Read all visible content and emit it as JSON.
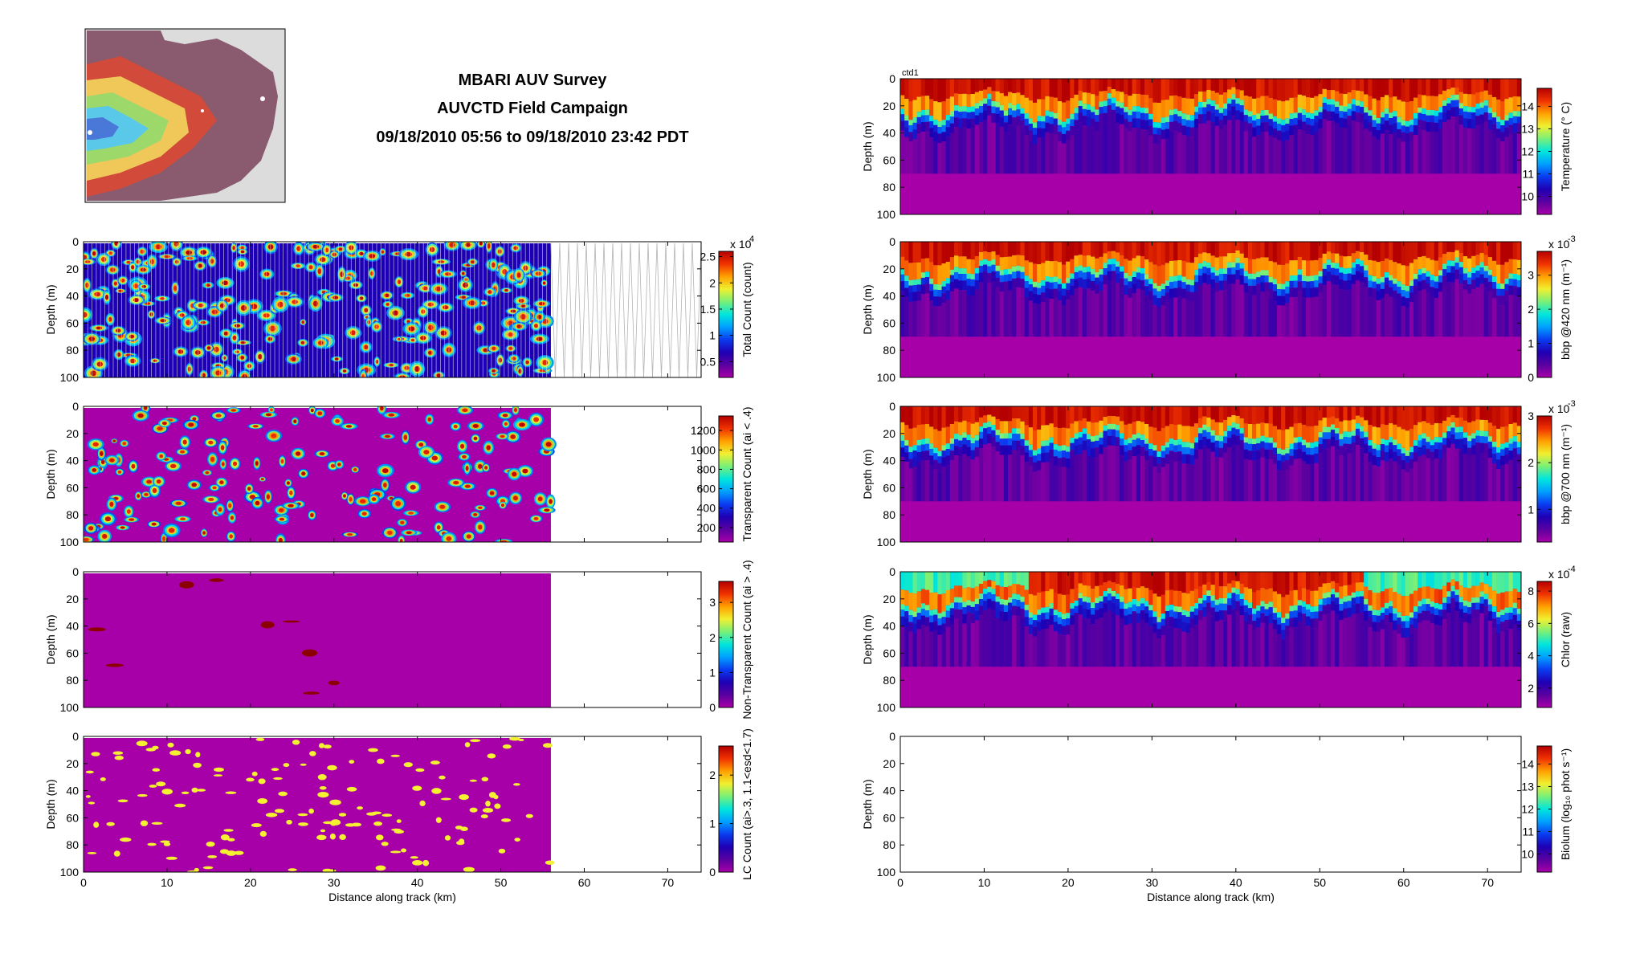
{
  "header": {
    "title_lines": [
      "MBARI AUV Survey",
      "AUVCTD Field Campaign",
      "09/18/2010 05:56 to 09/18/2010 23:42 PDT"
    ]
  },
  "map_thumbnail": {
    "colors": [
      "#8a5a6e",
      "#d24a3a",
      "#f0c85a",
      "#9cd86a",
      "#5ac8e8",
      "#4a78d8"
    ]
  },
  "colormap": [
    "#a800a8",
    "#5a00a0",
    "#1e00b4",
    "#0a3cf0",
    "#00a0ff",
    "#00e6dc",
    "#78f078",
    "#f0f030",
    "#ffa000",
    "#f03200",
    "#b40000"
  ],
  "chart_data": [
    {
      "id": "total-count",
      "type": "heatmap",
      "xlabel": "",
      "ylabel": "Depth (m)",
      "xlim": [
        0,
        74
      ],
      "ylim": [
        100,
        0
      ],
      "xticks": [],
      "yticks": [
        0,
        20,
        40,
        60,
        80,
        100
      ],
      "coverage_km": [
        0,
        56
      ],
      "ghost_tracks_km": [
        56,
        74
      ],
      "colorbar": {
        "label": "Total Count (count)",
        "exponent": "x 10",
        "exponent_power": "4",
        "min": 0.2,
        "max": 2.6,
        "ticks": [
          "0.5",
          "1",
          "1.5",
          "2",
          "2.5"
        ]
      },
      "style": "patchy-full"
    },
    {
      "id": "transparent-count",
      "type": "heatmap",
      "xlabel": "",
      "ylabel": "Depth (m)",
      "xlim": [
        0,
        74
      ],
      "ylim": [
        100,
        0
      ],
      "xticks": [],
      "yticks": [
        0,
        20,
        40,
        60,
        80,
        100
      ],
      "coverage_km": [
        0,
        56
      ],
      "colorbar": {
        "label": "Transparent Count (ai < .4)",
        "exponent": "",
        "exponent_power": "",
        "min": 50,
        "max": 1350,
        "ticks": [
          "200",
          "400",
          "600",
          "800",
          "1000",
          "1200"
        ]
      },
      "style": "patchy-medium"
    },
    {
      "id": "nontransparent-count",
      "type": "heatmap",
      "xlabel": "",
      "ylabel": "Depth (m)",
      "xlim": [
        0,
        74
      ],
      "ylim": [
        100,
        0
      ],
      "xticks": [],
      "yticks": [
        0,
        20,
        40,
        60,
        80,
        100
      ],
      "coverage_km": [
        0,
        56
      ],
      "colorbar": {
        "label": "Non-Transparent Count (ai > .4)",
        "exponent": "",
        "exponent_power": "",
        "min": 0,
        "max": 3.6,
        "ticks": [
          "0",
          "1",
          "2",
          "3"
        ]
      },
      "style": "sparse-spots"
    },
    {
      "id": "lc-count",
      "type": "heatmap",
      "xlabel": "Distance along track (km)",
      "ylabel": "Depth (m)",
      "xlim": [
        0,
        74
      ],
      "ylim": [
        100,
        0
      ],
      "xticks": [
        0,
        10,
        20,
        30,
        40,
        50,
        60,
        70
      ],
      "yticks": [
        0,
        20,
        40,
        60,
        80,
        100
      ],
      "coverage_km": [
        0,
        56
      ],
      "colorbar": {
        "label": "LC Count (ai>.3, 1.1<esd<1.7)",
        "exponent": "",
        "exponent_power": "",
        "min": 0,
        "max": 2.6,
        "ticks": [
          "0",
          "1",
          "2"
        ]
      },
      "style": "yellow-spots"
    },
    {
      "id": "temperature",
      "type": "heatmap",
      "annotation": "ctd1",
      "xlabel": "",
      "ylabel": "Depth (m)",
      "xlim": [
        0,
        74
      ],
      "ylim": [
        100,
        0
      ],
      "xticks": [],
      "yticks": [
        0,
        20,
        40,
        60,
        80,
        100
      ],
      "coverage_km": [
        0,
        74
      ],
      "colorbar": {
        "label": "Temperature (° C)",
        "exponent": "",
        "exponent_power": "",
        "min": 9.2,
        "max": 14.8,
        "ticks": [
          "10",
          "11",
          "12",
          "13",
          "14"
        ]
      },
      "style": "layer-temp"
    },
    {
      "id": "bbp420",
      "type": "heatmap",
      "xlabel": "",
      "ylabel": "Depth (m)",
      "xlim": [
        0,
        74
      ],
      "ylim": [
        100,
        0
      ],
      "xticks": [],
      "yticks": [
        0,
        20,
        40,
        60,
        80,
        100
      ],
      "coverage_km": [
        0,
        74
      ],
      "colorbar": {
        "label": "bbp @420 nm (m⁻¹)",
        "exponent": "x 10",
        "exponent_power": "-3",
        "min": 0,
        "max": 3.7,
        "ticks": [
          "0",
          "1",
          "2",
          "3"
        ]
      },
      "style": "layer-bbp"
    },
    {
      "id": "bbp700",
      "type": "heatmap",
      "xlabel": "",
      "ylabel": "Depth (m)",
      "xlim": [
        0,
        74
      ],
      "ylim": [
        100,
        0
      ],
      "xticks": [],
      "yticks": [
        0,
        20,
        40,
        60,
        80,
        100
      ],
      "coverage_km": [
        0,
        74
      ],
      "colorbar": {
        "label": "bbp @700 nm (m⁻¹)",
        "exponent": "x 10",
        "exponent_power": "-3",
        "min": 0.3,
        "max": 3.0,
        "ticks": [
          "1",
          "2",
          "3"
        ]
      },
      "style": "layer-bbp"
    },
    {
      "id": "chlor",
      "type": "heatmap",
      "xlabel": "",
      "ylabel": "Depth (m)",
      "xlim": [
        0,
        74
      ],
      "ylim": [
        100,
        0
      ],
      "xticks": [],
      "yticks": [
        0,
        20,
        40,
        60,
        80,
        100
      ],
      "coverage_km": [
        0,
        74
      ],
      "colorbar": {
        "label": "Chlor (raw)",
        "exponent": "x 10",
        "exponent_power": "-4",
        "min": 0.8,
        "max": 8.6,
        "ticks": [
          "2",
          "4",
          "6",
          "8"
        ]
      },
      "style": "layer-chl"
    },
    {
      "id": "biolum",
      "type": "heatmap",
      "xlabel": "Distance along track (km)",
      "ylabel": "Depth (m)",
      "xlim": [
        0,
        74
      ],
      "ylim": [
        100,
        0
      ],
      "xticks": [
        0,
        10,
        20,
        30,
        40,
        50,
        60,
        70
      ],
      "yticks": [
        0,
        20,
        40,
        60,
        80,
        100
      ],
      "coverage_km": [
        0,
        0
      ],
      "colorbar": {
        "label": "Biolum (log₁₀ phot s⁻¹)",
        "exponent": "",
        "exponent_power": "",
        "min": 9.2,
        "max": 14.8,
        "ticks": [
          "10",
          "11",
          "12",
          "13",
          "14"
        ]
      },
      "style": "empty"
    }
  ]
}
